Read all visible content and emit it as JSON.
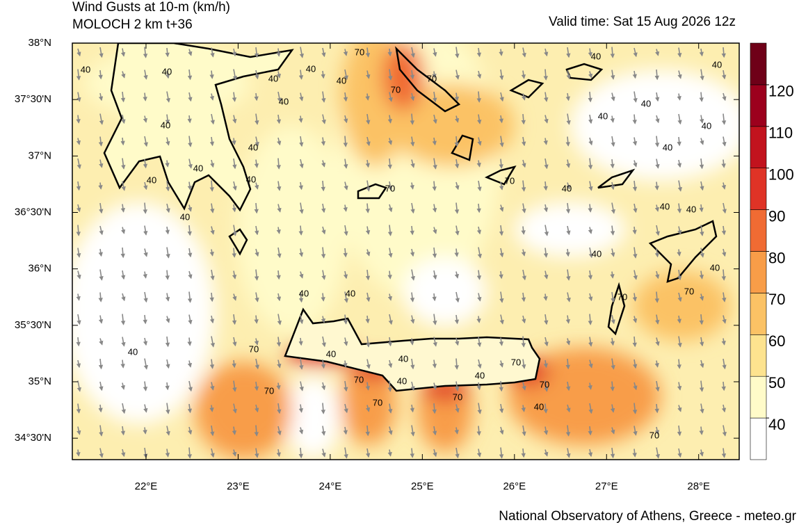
{
  "title": "Wind Gusts at 10-m (km/h)",
  "subtitle": "MOLOCH 2 km t+36",
  "valid_time": "Valid time: Sat 15 Aug 2026 12z",
  "footer": "National Observatory of Athens, Greece - meteo.gr",
  "map": {
    "xlim": [
      21.2,
      28.44
    ],
    "ylim": [
      34.31,
      38
    ],
    "xticks": [
      {
        "value": 22,
        "label": "22°E"
      },
      {
        "value": 23,
        "label": "23°E"
      },
      {
        "value": 24,
        "label": "24°E"
      },
      {
        "value": 25,
        "label": "25°E"
      },
      {
        "value": 26,
        "label": "26°E"
      },
      {
        "value": 27,
        "label": "27°E"
      },
      {
        "value": 28,
        "label": "28°E"
      }
    ],
    "yticks": [
      {
        "value": 38,
        "label": "38°N"
      },
      {
        "value": 37.5,
        "label": "37°30'N"
      },
      {
        "value": 37,
        "label": "37°N"
      },
      {
        "value": 36.5,
        "label": "36°30'N"
      },
      {
        "value": 36,
        "label": "36°N"
      },
      {
        "value": 35.5,
        "label": "35°30'N"
      },
      {
        "value": 35,
        "label": "35°N"
      },
      {
        "value": 34.5,
        "label": "34°30'N"
      }
    ],
    "contour_labels": [
      40,
      40,
      70,
      40,
      40,
      40,
      70,
      70,
      40,
      40,
      40,
      40,
      40,
      40,
      40,
      40,
      40,
      40,
      40,
      40,
      70,
      70,
      40,
      40,
      40,
      40,
      40,
      40,
      40,
      40,
      70,
      70,
      70,
      40,
      40,
      40,
      70,
      70,
      40,
      40,
      70,
      70,
      70,
      70,
      40,
      70
    ]
  },
  "colorbar": {
    "levels": [
      40,
      50,
      60,
      70,
      80,
      90,
      100,
      110,
      120
    ],
    "colors": [
      "#ffffff",
      "#fffbc9",
      "#fde38f",
      "#fbc265",
      "#f89d48",
      "#f06b33",
      "#df3326",
      "#c2131e",
      "#9c001d",
      "#6f0018"
    ]
  }
}
